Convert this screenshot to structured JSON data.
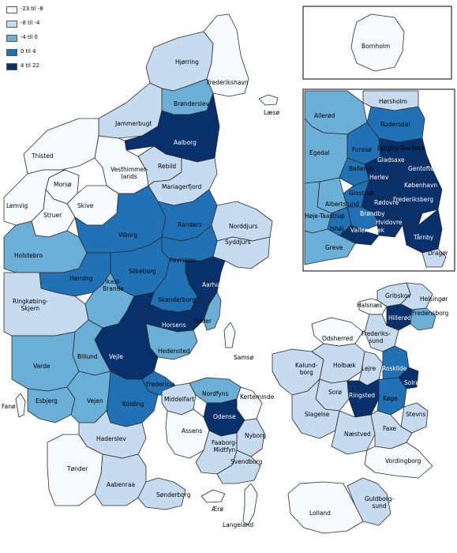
{
  "legend": {
    "items": [
      {
        "label": "-23 til -8",
        "color": "#f7fbff"
      },
      {
        "label": "-8 til -4",
        "color": "#c6dbef"
      },
      {
        "label": "-4 til 0",
        "color": "#6baed6"
      },
      {
        "label": "0 til 4",
        "color": "#2171b5"
      },
      {
        "label": "4 til 22",
        "color": "#08306b"
      }
    ]
  },
  "colors": {
    "c1": "#f7fbff",
    "c2": "#c6dbef",
    "c3": "#6baed6",
    "c4": "#2171b5",
    "c5": "#08306b",
    "sea": "#ffffff",
    "border": "#2b2b2b"
  },
  "labels": {
    "hjorring": "Hjørring",
    "frederikshavn": "Frederikshavn",
    "laeso": "Læsø",
    "bronderslev": "Brønderslev",
    "jammerbugt": "Jammerbugt",
    "thisted": "Thisted",
    "aalborg": "Aalborg",
    "vesthimmerlands": "Vesthimmer-\nlands",
    "rebild": "Rebild",
    "morso": "Morsø",
    "mariagerfjord": "Mariagerfjord",
    "skive": "Skive",
    "lemvig": "Lemvig",
    "struer": "Struer",
    "randers": "Randers",
    "norddjurs": "Norddjurs",
    "viborg": "Viborg",
    "holstebro": "Holstebro",
    "syddjurs": "Syddjurs",
    "favrskov": "Favrskov",
    "silkeborg": "Silkeborg",
    "herning": "Herning",
    "ikast_brande": "Ikast-\nBrande",
    "aarhus": "Aarhus",
    "ringkobing": "Ringkøbing-\nSkjern",
    "skanderborg": "Skanderborg",
    "horsens": "Horsens",
    "odder": "Odder",
    "hedensted": "Hedensted",
    "vejle": "Vejle",
    "billund": "Billund",
    "samso": "Samsø",
    "varde": "Varde",
    "fredericia": "Fredericia",
    "esbjerg": "Esbjerg",
    "vejen": "Vejen",
    "kolding": "Kolding",
    "middelfart": "Middelfart",
    "nordfyns": "Nordfyns",
    "kerteminde": "Kerteminde",
    "fano": "Fanø",
    "odense": "Odense",
    "haderslev": "Haderslev",
    "assens": "Assens",
    "nyborg": "Nyborg",
    "faaborg": "Faaborg-\nMidtfyn",
    "svendborg": "Svendborg",
    "tonder": "Tønder",
    "aabenraa": "Aabenraa",
    "sonderborg": "Sønderborg",
    "aero": "Ærø",
    "langeland": "Langeland",
    "gribskov": "Gribskov",
    "halsnaes": "Halsnæs",
    "helsingor": "Helsingør",
    "hillerod": "Hillerød",
    "fredensborg": "Fredensborg",
    "odsherred": "Odsherred",
    "frederikssund": "Frederiks-\nsund",
    "kalundborg": "Kalund-\nborg",
    "holbaek": "Holbæk",
    "lejre": "Lejre",
    "roskilde": "Roskilde",
    "solrod": "Solrød",
    "soro": "Sorø",
    "ringsted": "Ringsted",
    "koge": "Køge",
    "slagelse": "Slagelse",
    "stevns": "Stevns",
    "naestved": "Næstved",
    "faxe": "Faxe",
    "vordingborg": "Vordingborg",
    "guldborgsund": "Guldborg-\nsund",
    "lolland": "Lolland",
    "bornholm": "Bornholm",
    "horsholm": "Hørsholm",
    "allerod": "Allerød",
    "rudersdal": "Rudersdal",
    "egedal": "Egedal",
    "furesø": "Furesø",
    "lyngby": "Lyngby-Taarbæk",
    "gladsaxe": "Gladsaxe",
    "ballerup": "Ballerup",
    "gentofte": "Gentofte",
    "herlev": "Herlev",
    "kobenhavn": "København",
    "glostrup": "Glostrup",
    "rodovre": "Rødovre",
    "frederiksberg": "Frederiksberg",
    "albertslund": "Albertslund",
    "hoje_taastrup": "Høje-Taastrup",
    "brondby": "Brøndby",
    "hvidovre": "Hvidovre",
    "ishoj": "Ishøj",
    "vallensbaek": "Vallensbæk",
    "tarnby": "Tårnby",
    "greve": "Greve",
    "dragor": "Dragør"
  }
}
